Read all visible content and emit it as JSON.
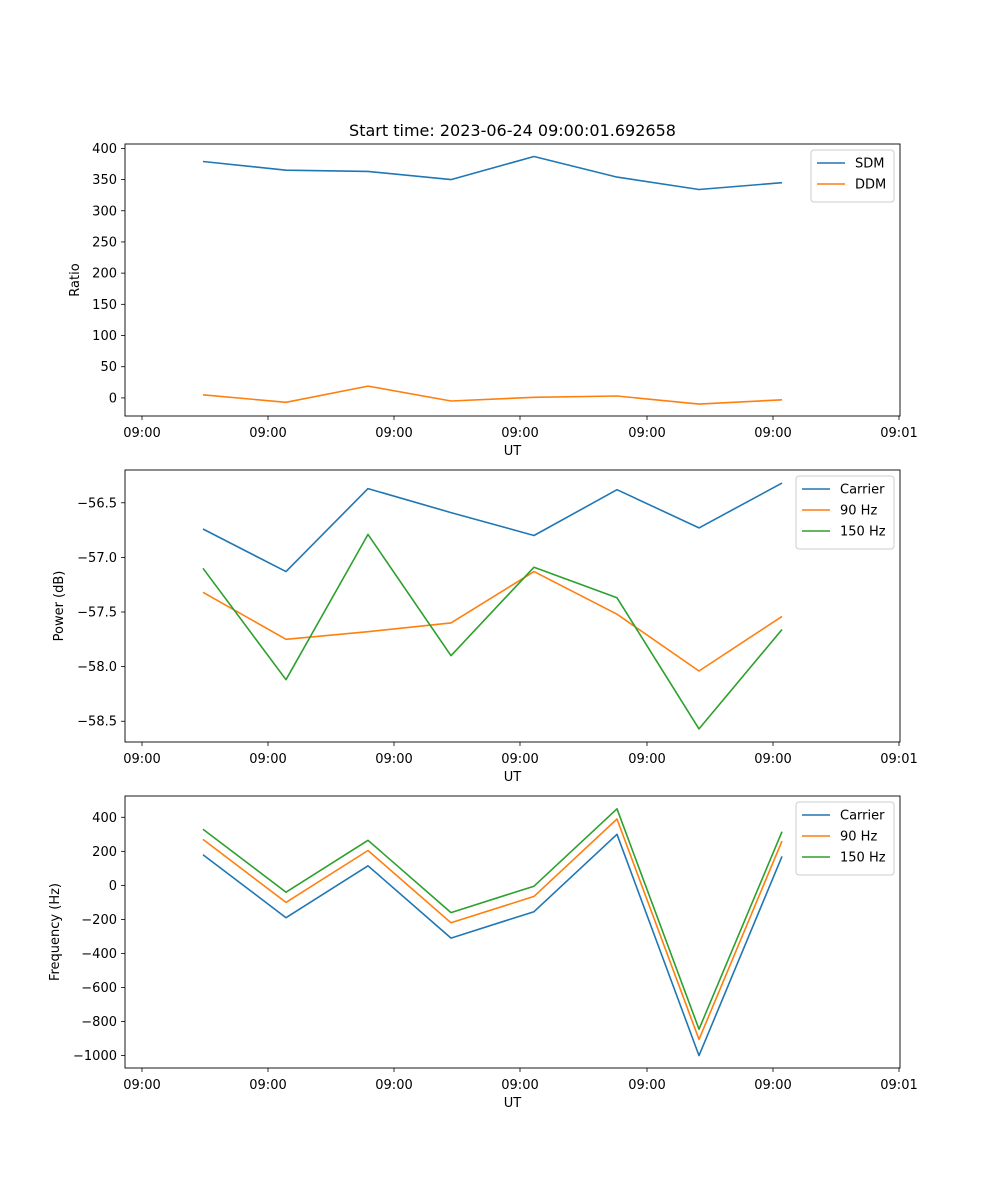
{
  "title": "Start time: 2023-06-24 09:00:01.692658",
  "chart_data": [
    {
      "type": "line",
      "xlabel": "UT",
      "ylabel": "Ratio",
      "x_tick_labels": [
        "09:00",
        "09:00",
        "09:00",
        "09:00",
        "09:00",
        "09:00",
        "09:01"
      ],
      "y_ticks": [
        0,
        50,
        100,
        150,
        200,
        250,
        300,
        350,
        400
      ],
      "ylim": [
        -29,
        407
      ],
      "legend": "top-right",
      "series": [
        {
          "name": "SDM",
          "color": "#1f77b4",
          "values": [
            379,
            365,
            363,
            350,
            387,
            354,
            334,
            345
          ]
        },
        {
          "name": "DDM",
          "color": "#ff7f0e",
          "values": [
            5,
            -7,
            19,
            -5,
            1,
            3,
            -10,
            -3
          ]
        }
      ]
    },
    {
      "type": "line",
      "xlabel": "UT",
      "ylabel": "Power (dB)",
      "x_tick_labels": [
        "09:00",
        "09:00",
        "09:00",
        "09:00",
        "09:00",
        "09:00",
        "09:01"
      ],
      "y_ticks": [
        -58.5,
        -58.0,
        -57.5,
        -57.0,
        -56.5
      ],
      "y_tick_labels": [
        "−58.5",
        "−58.0",
        "−57.5",
        "−57.0",
        "−56.5"
      ],
      "ylim": [
        -58.69,
        -56.2
      ],
      "legend": "top-right",
      "series": [
        {
          "name": "Carrier",
          "color": "#1f77b4",
          "values": [
            -56.74,
            -57.13,
            -56.37,
            -56.59,
            -56.8,
            -56.38,
            -56.73,
            -56.32
          ]
        },
        {
          "name": "90 Hz",
          "color": "#ff7f0e",
          "values": [
            -57.32,
            -57.75,
            -57.68,
            -57.6,
            -57.13,
            -57.52,
            -58.04,
            -57.54
          ]
        },
        {
          "name": "150 Hz",
          "color": "#2ca02c",
          "values": [
            -57.1,
            -58.12,
            -56.79,
            -57.9,
            -57.09,
            -57.37,
            -58.57,
            -57.66
          ]
        }
      ]
    },
    {
      "type": "line",
      "xlabel": "UT",
      "ylabel": "Frequency (Hz)",
      "x_tick_labels": [
        "09:00",
        "09:00",
        "09:00",
        "09:00",
        "09:00",
        "09:00",
        "09:01"
      ],
      "y_ticks": [
        -1000,
        -800,
        -600,
        -400,
        -200,
        0,
        200,
        400
      ],
      "y_tick_labels": [
        "−1000",
        "−800",
        "−600",
        "−400",
        "−200",
        "0",
        "200",
        "400"
      ],
      "ylim": [
        -1073,
        525
      ],
      "legend": "top-right",
      "series": [
        {
          "name": "Carrier",
          "color": "#1f77b4",
          "values": [
            180,
            -190,
            115,
            -310,
            -155,
            300,
            -1000,
            170
          ]
        },
        {
          "name": "90 Hz",
          "color": "#ff7f0e",
          "values": [
            270,
            -100,
            205,
            -220,
            -65,
            390,
            -905,
            260
          ]
        },
        {
          "name": "150 Hz",
          "color": "#2ca02c",
          "values": [
            330,
            -40,
            265,
            -160,
            -5,
            450,
            -845,
            315
          ]
        }
      ]
    }
  ]
}
